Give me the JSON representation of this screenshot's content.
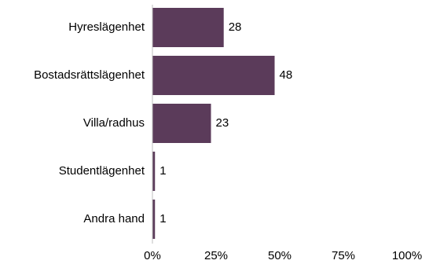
{
  "chart_data": {
    "type": "bar",
    "orientation": "horizontal",
    "categories": [
      "Hyreslägenhet",
      "Bostadsrättslägenhet",
      "Villa/radhus",
      "Studentlägenhet",
      "Andra hand"
    ],
    "values": [
      28,
      48,
      23,
      1,
      1
    ],
    "value_labels": [
      "28",
      "48",
      "23",
      "1",
      "1"
    ],
    "x_ticks": [
      "0%",
      "25%",
      "50%",
      "75%",
      "100%"
    ],
    "xlim": [
      0,
      100
    ],
    "bar_color": "#5b3b5a",
    "grid": false,
    "legend": false
  }
}
